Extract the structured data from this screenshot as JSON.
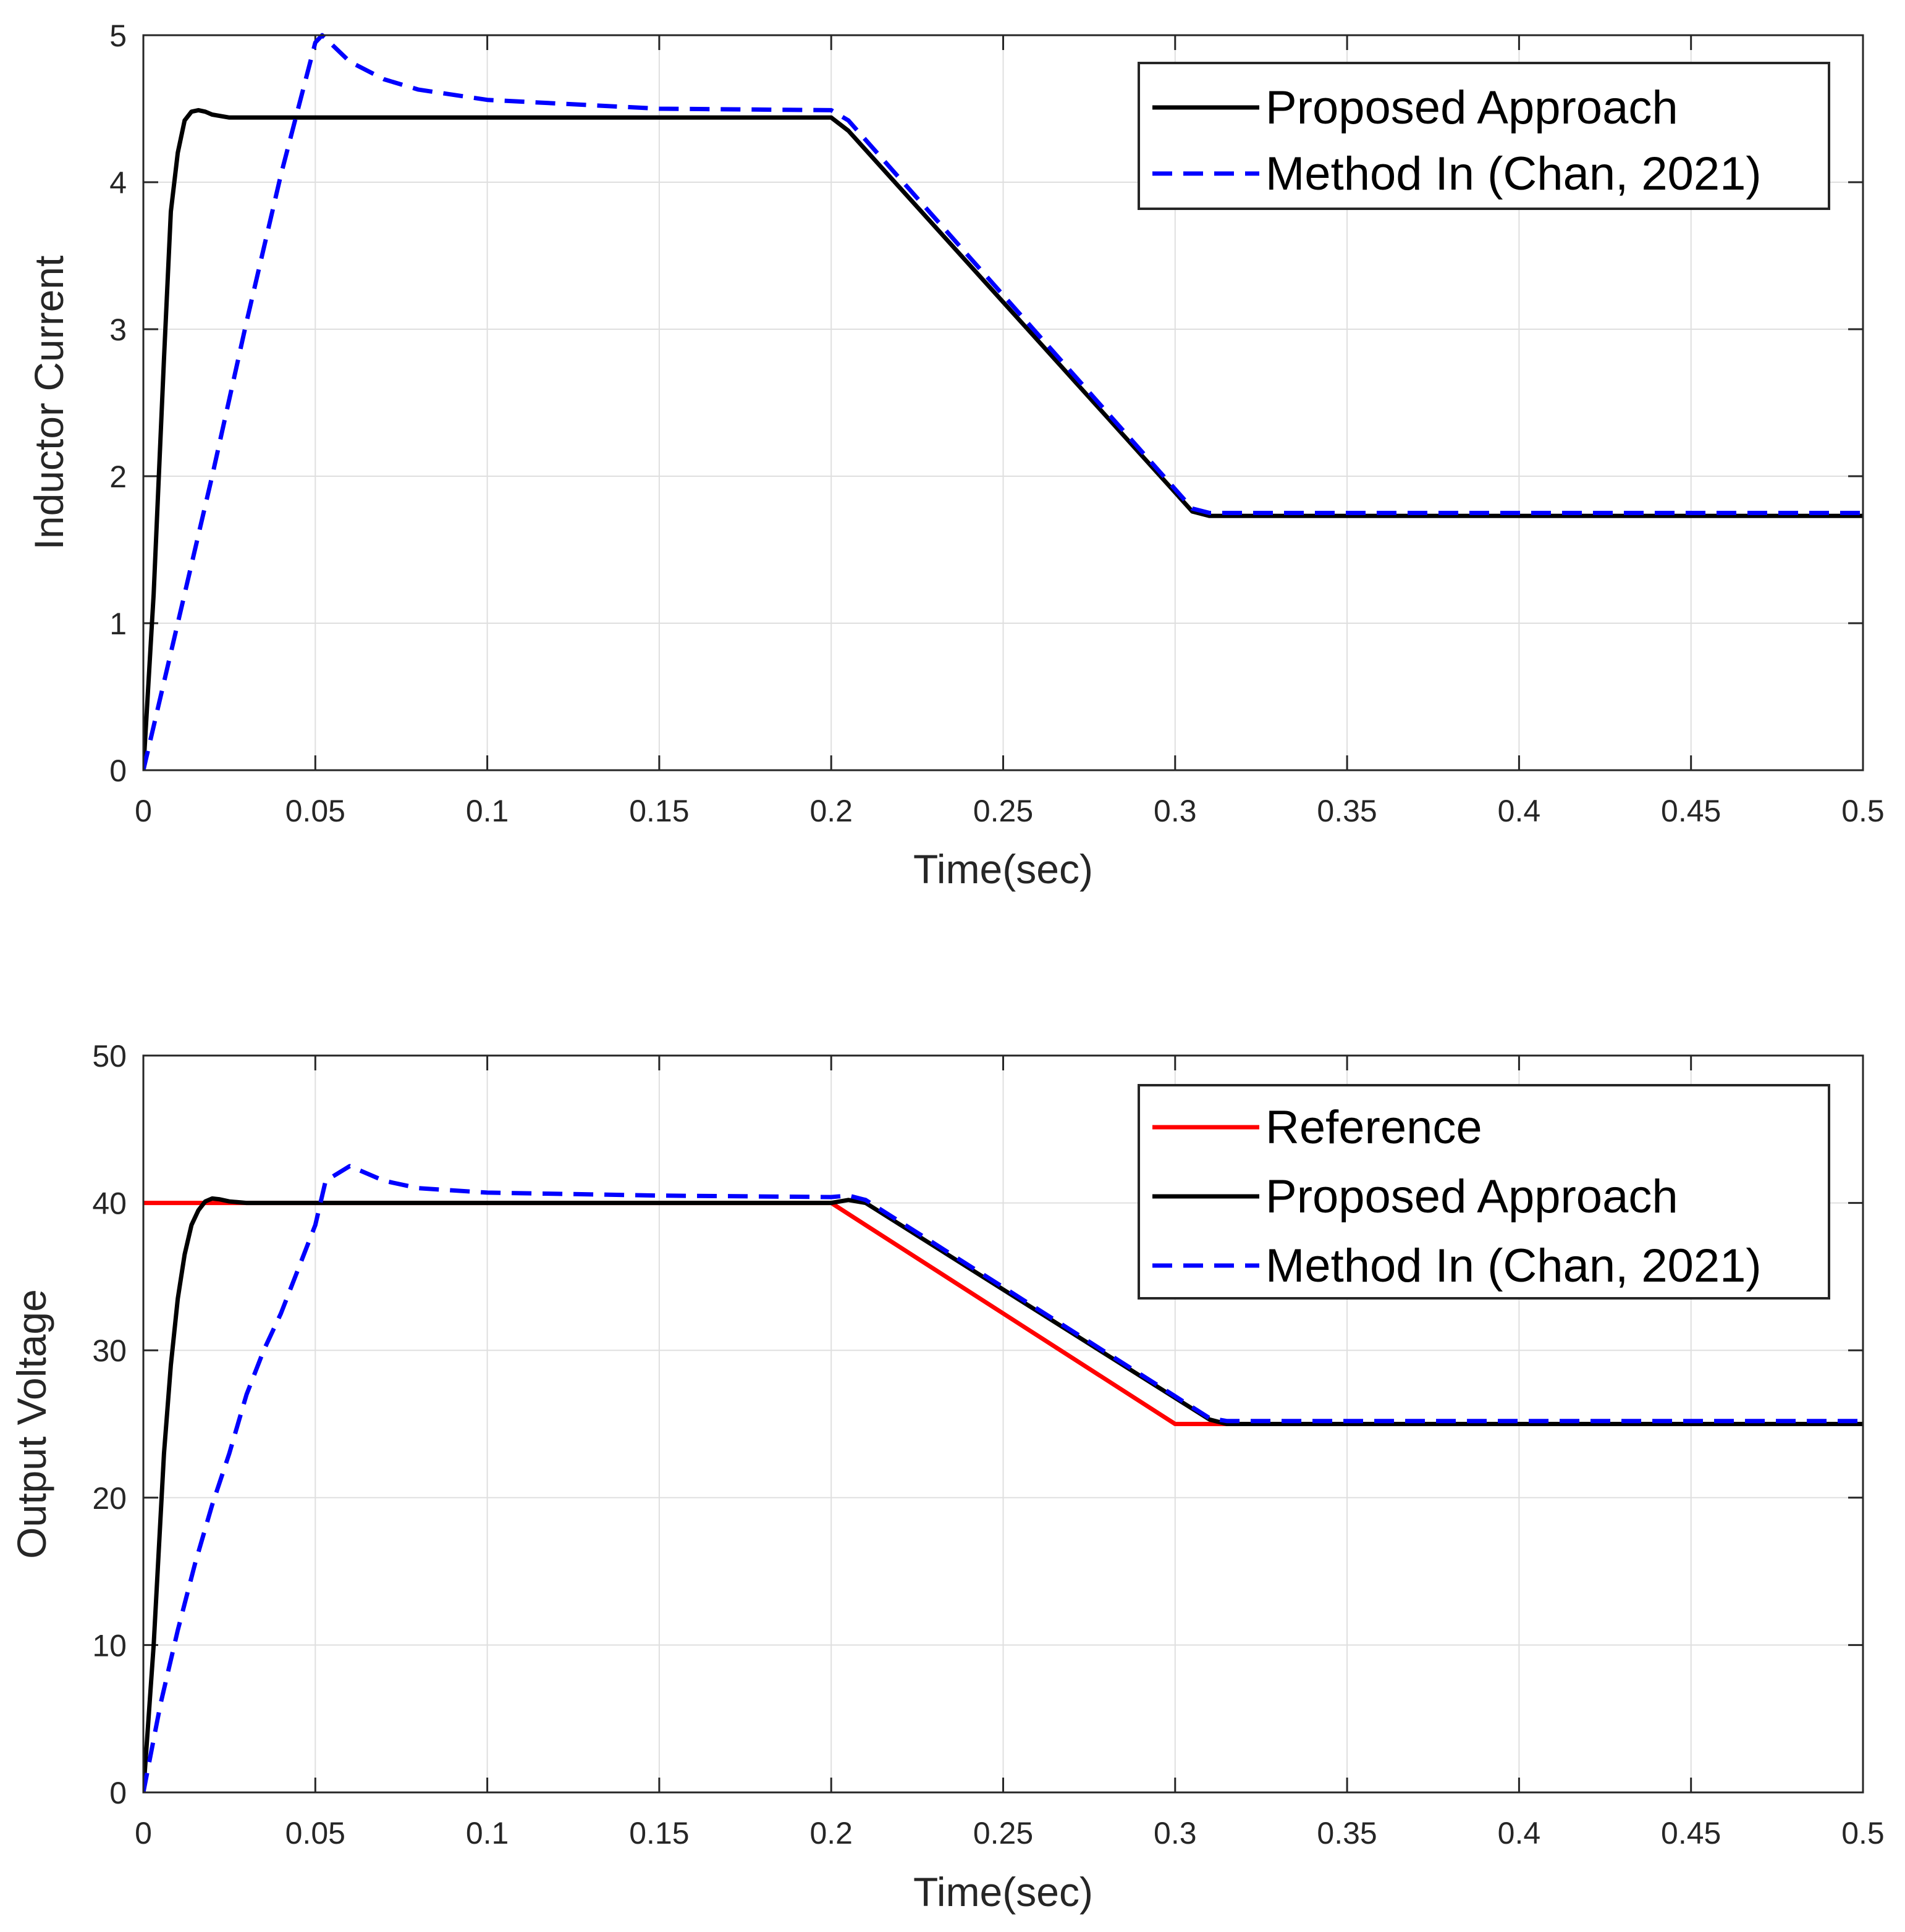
{
  "chart_data": [
    {
      "type": "line",
      "title": "",
      "xlabel": "Time(sec)",
      "ylabel": "Inductor Current",
      "xlim": [
        0,
        0.5
      ],
      "ylim": [
        0,
        5
      ],
      "xticks": [
        0,
        0.05,
        0.1,
        0.15,
        0.2,
        0.25,
        0.3,
        0.35,
        0.4,
        0.45,
        0.5
      ],
      "xtick_labels": [
        "0",
        "0.05",
        "0.1",
        "0.15",
        "0.2",
        "0.25",
        "0.3",
        "0.35",
        "0.4",
        "0.45",
        "0.5"
      ],
      "yticks": [
        0,
        1,
        2,
        3,
        4,
        5
      ],
      "ytick_labels": [
        "0",
        "1",
        "2",
        "3",
        "4",
        "5"
      ],
      "grid": true,
      "legend_position": "top-right",
      "series": [
        {
          "name": "Proposed Approach",
          "color": "#000000",
          "dash": "solid",
          "x": [
            0,
            0.003,
            0.006,
            0.008,
            0.01,
            0.012,
            0.014,
            0.016,
            0.018,
            0.02,
            0.025,
            0.2,
            0.205,
            0.305,
            0.31,
            0.5
          ],
          "y": [
            0,
            1.2,
            2.8,
            3.8,
            4.2,
            4.42,
            4.48,
            4.49,
            4.48,
            4.46,
            4.44,
            4.44,
            4.35,
            1.76,
            1.73,
            1.73
          ]
        },
        {
          "name": "Method In (Chan, 2021)",
          "color": "#0000ff",
          "dash": "dashed",
          "x": [
            0,
            0.01,
            0.02,
            0.03,
            0.04,
            0.05,
            0.052,
            0.06,
            0.07,
            0.08,
            0.1,
            0.15,
            0.2,
            0.205,
            0.305,
            0.31,
            0.5
          ],
          "y": [
            0,
            1.0,
            2.0,
            3.05,
            4.05,
            4.95,
            5.0,
            4.82,
            4.7,
            4.63,
            4.56,
            4.5,
            4.49,
            4.42,
            1.78,
            1.75,
            1.75
          ]
        }
      ]
    },
    {
      "type": "line",
      "title": "",
      "xlabel": "Time(sec)",
      "ylabel": "Output Voltage",
      "xlim": [
        0,
        0.5
      ],
      "ylim": [
        0,
        50
      ],
      "xticks": [
        0,
        0.05,
        0.1,
        0.15,
        0.2,
        0.25,
        0.3,
        0.35,
        0.4,
        0.45,
        0.5
      ],
      "xtick_labels": [
        "0",
        "0.05",
        "0.1",
        "0.15",
        "0.2",
        "0.25",
        "0.3",
        "0.35",
        "0.4",
        "0.45",
        "0.5"
      ],
      "yticks": [
        0,
        10,
        20,
        30,
        40,
        50
      ],
      "ytick_labels": [
        "0",
        "10",
        "20",
        "30",
        "40",
        "50"
      ],
      "grid": true,
      "legend_position": "top-right",
      "series": [
        {
          "name": "Reference",
          "color": "#ff0000",
          "dash": "solid",
          "x": [
            0,
            0.2,
            0.3,
            0.5
          ],
          "y": [
            40,
            40,
            25,
            25
          ]
        },
        {
          "name": "Proposed Approach",
          "color": "#000000",
          "dash": "solid",
          "x": [
            0,
            0.003,
            0.006,
            0.008,
            0.01,
            0.012,
            0.014,
            0.016,
            0.018,
            0.02,
            0.022,
            0.025,
            0.03,
            0.2,
            0.205,
            0.21,
            0.31,
            0.315,
            0.5
          ],
          "y": [
            0,
            10,
            23,
            29,
            33.5,
            36.5,
            38.5,
            39.5,
            40.1,
            40.3,
            40.25,
            40.1,
            40.0,
            40.0,
            40.2,
            40.0,
            25.3,
            25.0,
            25.0
          ]
        },
        {
          "name": "Method In (Chan, 2021)",
          "color": "#0000ff",
          "dash": "dashed",
          "x": [
            0,
            0.005,
            0.01,
            0.015,
            0.02,
            0.025,
            0.03,
            0.035,
            0.04,
            0.045,
            0.05,
            0.053,
            0.06,
            0.07,
            0.08,
            0.1,
            0.15,
            0.2,
            0.205,
            0.21,
            0.31,
            0.315,
            0.5
          ],
          "y": [
            0,
            6,
            11,
            15.5,
            19.5,
            23,
            27,
            30,
            32.5,
            35.5,
            38.5,
            41.5,
            42.5,
            41.5,
            41.0,
            40.7,
            40.5,
            40.4,
            40.5,
            40.2,
            25.4,
            25.2,
            25.2
          ]
        }
      ]
    }
  ]
}
